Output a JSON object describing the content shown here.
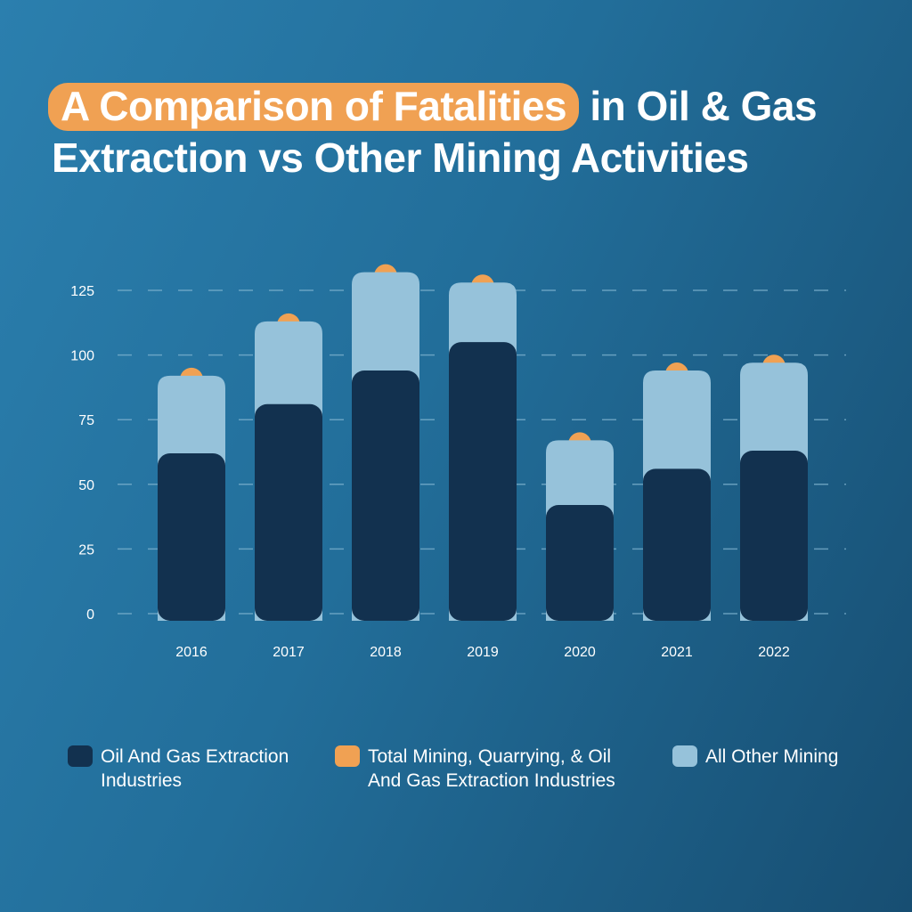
{
  "title": {
    "highlight": "A Comparison of Fatalities",
    "rest_line1": " in Oil & Gas",
    "line2": "Extraction vs Other Mining Activities"
  },
  "colors": {
    "oil_gas": "#12314f",
    "other_mining": "#96c2da",
    "total": "#f0a153",
    "grid": "#7fb3cf",
    "axis_text": "#ffffff"
  },
  "chart_data": {
    "type": "bar",
    "stacked": true,
    "categories": [
      "2016",
      "2017",
      "2018",
      "2019",
      "2020",
      "2021",
      "2022"
    ],
    "yticks": [
      "0",
      "25",
      "50",
      "75",
      "100",
      "125"
    ],
    "ylim": [
      0,
      125
    ],
    "series": [
      {
        "name": "Oil And Gas Extraction Industries",
        "values": [
          62,
          81,
          94,
          105,
          42,
          56,
          63
        ]
      },
      {
        "name": "All Other Mining",
        "values": [
          30,
          32,
          38,
          23,
          25,
          38,
          34
        ]
      }
    ],
    "totals": {
      "name": "Total Mining, Quarrying, & Oil And Gas Extraction Industries",
      "values": [
        92,
        113,
        132,
        128,
        67,
        94,
        97
      ]
    },
    "grid": true,
    "legend_position": "bottom"
  },
  "legend": [
    {
      "label": "Oil And Gas Extraction Industries",
      "color": "#12314f"
    },
    {
      "label": "Total Mining, Quarrying, & Oil And Gas Extraction Industries",
      "color": "#f0a153"
    },
    {
      "label": "All Other Mining",
      "color": "#96c2da"
    }
  ]
}
